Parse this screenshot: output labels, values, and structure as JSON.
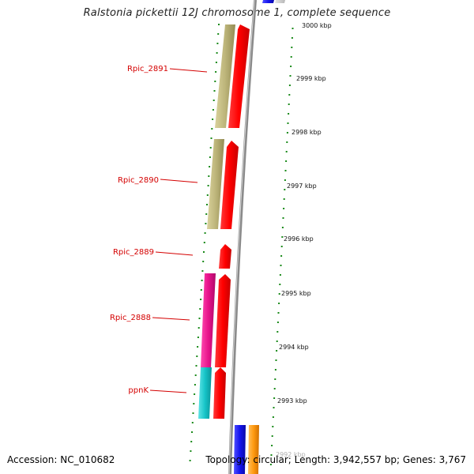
{
  "title": "Ralstonia pickettii 12J chromosome 1, complete sequence",
  "footer": {
    "accession": "Accession: NC_010682",
    "summary": "Topology: circular; Length: 3,942,557 bp; Genes: 3,767"
  },
  "colors": {
    "backbone": "#8a8a8a",
    "cds_forward": "#ff0000",
    "gene_olive": "#bdb57a",
    "gene_pink": "#e8148c",
    "gene_cyan": "#16c4c8",
    "blue": "#1414ee",
    "orange": "#ff9a10",
    "gc_dots": "#1a8a1a",
    "label_red": "#d40000"
  },
  "ticks": [
    {
      "label": "3000 kbp"
    },
    {
      "label": "2999 kbp"
    },
    {
      "label": "2998 kbp"
    },
    {
      "label": "2997 kbp"
    },
    {
      "label": "2996 kbp"
    },
    {
      "label": "2995 kbp"
    },
    {
      "label": "2994 kbp"
    },
    {
      "label": "2993 kbp"
    },
    {
      "label": "2992 kbp"
    }
  ],
  "genes": [
    {
      "label": "Rpic_2891"
    },
    {
      "label": "Rpic_2890"
    },
    {
      "label": "Rpic_2889"
    },
    {
      "label": "Rpic_2888"
    },
    {
      "label": "ppnK"
    }
  ]
}
